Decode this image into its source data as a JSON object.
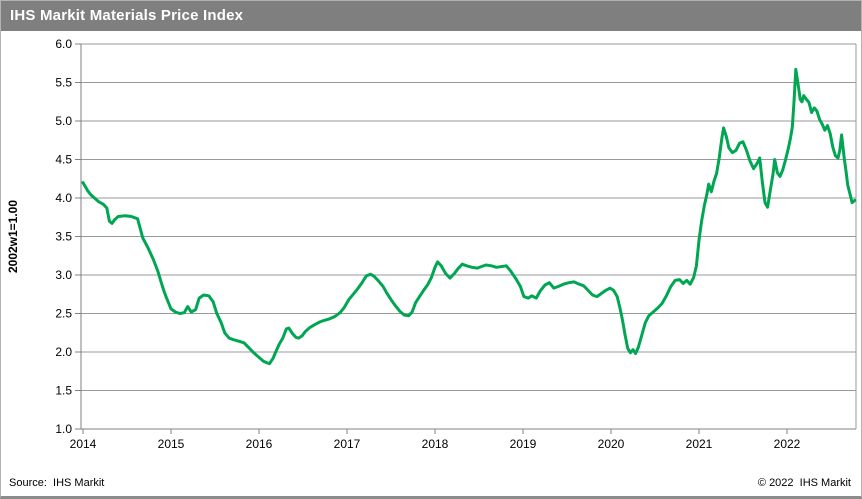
{
  "header": {
    "title": "IHS Markit Materials Price Index"
  },
  "footer": {
    "source": "Source:  IHS Markit",
    "copyright": "© 2022  IHS Markit"
  },
  "colors": {
    "title_bar_bg": "#7f7f7f",
    "title_text": "#ffffff",
    "line": "#00a651",
    "grid": "#999999",
    "axis": "#808080",
    "tick_text": "#000000"
  },
  "chart_data": {
    "type": "line",
    "title": "IHS Markit Materials Price Index",
    "xlabel": "",
    "ylabel": "2002w1=1.00",
    "xticks": [
      2014,
      2015,
      2016,
      2017,
      2018,
      2019,
      2020,
      2021,
      2022
    ],
    "yticks": [
      1.0,
      1.5,
      2.0,
      2.5,
      3.0,
      3.5,
      4.0,
      4.5,
      5.0,
      5.5,
      6.0
    ],
    "ylim": [
      1.0,
      6.0
    ],
    "xlim": [
      2013.97,
      2022.79
    ],
    "grid": true,
    "legend_position": "none",
    "series": [
      {
        "name": "Materials Price Index",
        "points": [
          [
            2014.0,
            4.2
          ],
          [
            2014.02,
            4.16
          ],
          [
            2014.05,
            4.1
          ],
          [
            2014.09,
            4.04
          ],
          [
            2014.14,
            3.99
          ],
          [
            2014.18,
            3.95
          ],
          [
            2014.23,
            3.92
          ],
          [
            2014.27,
            3.87
          ],
          [
            2014.3,
            3.7
          ],
          [
            2014.33,
            3.67
          ],
          [
            2014.36,
            3.72
          ],
          [
            2014.4,
            3.76
          ],
          [
            2014.48,
            3.77
          ],
          [
            2014.55,
            3.76
          ],
          [
            2014.62,
            3.73
          ],
          [
            2014.68,
            3.48
          ],
          [
            2014.74,
            3.35
          ],
          [
            2014.8,
            3.2
          ],
          [
            2014.85,
            3.05
          ],
          [
            2014.89,
            2.9
          ],
          [
            2014.92,
            2.79
          ],
          [
            2014.95,
            2.7
          ],
          [
            2015.0,
            2.56
          ],
          [
            2015.05,
            2.52
          ],
          [
            2015.1,
            2.5
          ],
          [
            2015.15,
            2.51
          ],
          [
            2015.19,
            2.59
          ],
          [
            2015.23,
            2.52
          ],
          [
            2015.28,
            2.55
          ],
          [
            2015.32,
            2.7
          ],
          [
            2015.37,
            2.74
          ],
          [
            2015.43,
            2.73
          ],
          [
            2015.48,
            2.65
          ],
          [
            2015.52,
            2.5
          ],
          [
            2015.57,
            2.38
          ],
          [
            2015.61,
            2.25
          ],
          [
            2015.66,
            2.18
          ],
          [
            2015.71,
            2.16
          ],
          [
            2015.77,
            2.14
          ],
          [
            2015.83,
            2.12
          ],
          [
            2015.89,
            2.05
          ],
          [
            2015.94,
            1.99
          ],
          [
            2016.0,
            1.93
          ],
          [
            2016.05,
            1.88
          ],
          [
            2016.09,
            1.86
          ],
          [
            2016.12,
            1.85
          ],
          [
            2016.16,
            1.92
          ],
          [
            2016.19,
            2.0
          ],
          [
            2016.23,
            2.1
          ],
          [
            2016.27,
            2.18
          ],
          [
            2016.31,
            2.3
          ],
          [
            2016.34,
            2.31
          ],
          [
            2016.38,
            2.24
          ],
          [
            2016.42,
            2.19
          ],
          [
            2016.45,
            2.18
          ],
          [
            2016.49,
            2.21
          ],
          [
            2016.53,
            2.27
          ],
          [
            2016.58,
            2.32
          ],
          [
            2016.64,
            2.36
          ],
          [
            2016.69,
            2.39
          ],
          [
            2016.74,
            2.41
          ],
          [
            2016.8,
            2.43
          ],
          [
            2016.86,
            2.46
          ],
          [
            2016.92,
            2.51
          ],
          [
            2016.97,
            2.58
          ],
          [
            2017.02,
            2.68
          ],
          [
            2017.07,
            2.75
          ],
          [
            2017.12,
            2.82
          ],
          [
            2017.17,
            2.9
          ],
          [
            2017.22,
            2.99
          ],
          [
            2017.27,
            3.01
          ],
          [
            2017.31,
            2.98
          ],
          [
            2017.36,
            2.92
          ],
          [
            2017.41,
            2.85
          ],
          [
            2017.45,
            2.77
          ],
          [
            2017.5,
            2.68
          ],
          [
            2017.55,
            2.6
          ],
          [
            2017.6,
            2.53
          ],
          [
            2017.65,
            2.48
          ],
          [
            2017.7,
            2.47
          ],
          [
            2017.74,
            2.52
          ],
          [
            2017.78,
            2.64
          ],
          [
            2017.83,
            2.73
          ],
          [
            2017.87,
            2.8
          ],
          [
            2017.92,
            2.88
          ],
          [
            2017.96,
            2.97
          ],
          [
            2018.0,
            3.1
          ],
          [
            2018.03,
            3.17
          ],
          [
            2018.07,
            3.12
          ],
          [
            2018.12,
            3.02
          ],
          [
            2018.17,
            2.96
          ],
          [
            2018.22,
            3.02
          ],
          [
            2018.26,
            3.08
          ],
          [
            2018.31,
            3.14
          ],
          [
            2018.36,
            3.12
          ],
          [
            2018.42,
            3.1
          ],
          [
            2018.48,
            3.09
          ],
          [
            2018.53,
            3.11
          ],
          [
            2018.58,
            3.13
          ],
          [
            2018.64,
            3.12
          ],
          [
            2018.7,
            3.1
          ],
          [
            2018.76,
            3.11
          ],
          [
            2018.81,
            3.12
          ],
          [
            2018.86,
            3.05
          ],
          [
            2018.92,
            2.95
          ],
          [
            2018.97,
            2.85
          ],
          [
            2019.01,
            2.72
          ],
          [
            2019.06,
            2.7
          ],
          [
            2019.1,
            2.73
          ],
          [
            2019.15,
            2.7
          ],
          [
            2019.2,
            2.8
          ],
          [
            2019.25,
            2.87
          ],
          [
            2019.3,
            2.9
          ],
          [
            2019.35,
            2.83
          ],
          [
            2019.4,
            2.85
          ],
          [
            2019.46,
            2.88
          ],
          [
            2019.52,
            2.9
          ],
          [
            2019.58,
            2.91
          ],
          [
            2019.64,
            2.88
          ],
          [
            2019.69,
            2.86
          ],
          [
            2019.74,
            2.8
          ],
          [
            2019.79,
            2.74
          ],
          [
            2019.84,
            2.72
          ],
          [
            2019.89,
            2.76
          ],
          [
            2019.94,
            2.8
          ],
          [
            2019.99,
            2.83
          ],
          [
            2020.03,
            2.8
          ],
          [
            2020.07,
            2.72
          ],
          [
            2020.1,
            2.58
          ],
          [
            2020.13,
            2.42
          ],
          [
            2020.16,
            2.22
          ],
          [
            2020.19,
            2.05
          ],
          [
            2020.22,
            1.99
          ],
          [
            2020.25,
            2.03
          ],
          [
            2020.28,
            1.98
          ],
          [
            2020.31,
            2.06
          ],
          [
            2020.35,
            2.22
          ],
          [
            2020.39,
            2.38
          ],
          [
            2020.43,
            2.47
          ],
          [
            2020.48,
            2.52
          ],
          [
            2020.53,
            2.57
          ],
          [
            2020.58,
            2.63
          ],
          [
            2020.63,
            2.73
          ],
          [
            2020.68,
            2.85
          ],
          [
            2020.73,
            2.93
          ],
          [
            2020.78,
            2.94
          ],
          [
            2020.82,
            2.89
          ],
          [
            2020.86,
            2.93
          ],
          [
            2020.9,
            2.88
          ],
          [
            2020.94,
            2.97
          ],
          [
            2020.97,
            3.12
          ],
          [
            2021.0,
            3.45
          ],
          [
            2021.03,
            3.7
          ],
          [
            2021.06,
            3.9
          ],
          [
            2021.09,
            4.05
          ],
          [
            2021.11,
            4.18
          ],
          [
            2021.14,
            4.08
          ],
          [
            2021.17,
            4.22
          ],
          [
            2021.2,
            4.32
          ],
          [
            2021.23,
            4.52
          ],
          [
            2021.26,
            4.78
          ],
          [
            2021.28,
            4.91
          ],
          [
            2021.31,
            4.8
          ],
          [
            2021.34,
            4.65
          ],
          [
            2021.38,
            4.59
          ],
          [
            2021.42,
            4.62
          ],
          [
            2021.46,
            4.71
          ],
          [
            2021.5,
            4.73
          ],
          [
            2021.54,
            4.62
          ],
          [
            2021.58,
            4.48
          ],
          [
            2021.62,
            4.38
          ],
          [
            2021.66,
            4.45
          ],
          [
            2021.69,
            4.52
          ],
          [
            2021.72,
            4.2
          ],
          [
            2021.75,
            3.94
          ],
          [
            2021.78,
            3.88
          ],
          [
            2021.81,
            4.1
          ],
          [
            2021.84,
            4.3
          ],
          [
            2021.86,
            4.5
          ],
          [
            2021.89,
            4.33
          ],
          [
            2021.92,
            4.28
          ],
          [
            2021.95,
            4.36
          ],
          [
            2021.98,
            4.48
          ],
          [
            2022.01,
            4.62
          ],
          [
            2022.04,
            4.78
          ],
          [
            2022.06,
            4.92
          ],
          [
            2022.08,
            5.25
          ],
          [
            2022.1,
            5.67
          ],
          [
            2022.13,
            5.45
          ],
          [
            2022.15,
            5.28
          ],
          [
            2022.17,
            5.25
          ],
          [
            2022.19,
            5.33
          ],
          [
            2022.22,
            5.28
          ],
          [
            2022.25,
            5.24
          ],
          [
            2022.28,
            5.11
          ],
          [
            2022.31,
            5.17
          ],
          [
            2022.34,
            5.13
          ],
          [
            2022.37,
            5.02
          ],
          [
            2022.4,
            4.96
          ],
          [
            2022.43,
            4.88
          ],
          [
            2022.46,
            4.94
          ],
          [
            2022.49,
            4.84
          ],
          [
            2022.52,
            4.66
          ],
          [
            2022.55,
            4.55
          ],
          [
            2022.58,
            4.52
          ],
          [
            2022.6,
            4.62
          ],
          [
            2022.62,
            4.82
          ],
          [
            2022.65,
            4.52
          ],
          [
            2022.67,
            4.35
          ],
          [
            2022.69,
            4.17
          ],
          [
            2022.72,
            4.03
          ],
          [
            2022.74,
            3.94
          ],
          [
            2022.77,
            3.97
          ]
        ]
      }
    ]
  }
}
